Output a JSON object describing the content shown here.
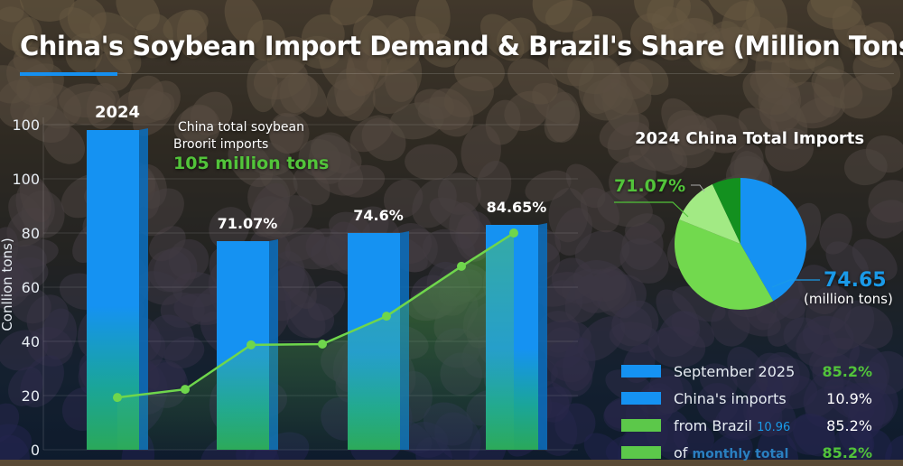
{
  "title": "China's Soybean Import Demand & Brazil's Share (Million Tons)",
  "colors": {
    "blue": "#1592f2",
    "green": "#6fd64c",
    "light_green": "#9be77a",
    "dark_green": "#138a1e",
    "accent_text_green": "#52c43a",
    "accent_text_blue": "#1a9ae8"
  },
  "callout": {
    "line1": "China total soybean",
    "line2": "Broorit imports",
    "value": "105 million tons"
  },
  "chart_data": [
    {
      "type": "bar",
      "ylabel": "Conllion tons)",
      "ytick_labels": [
        "0",
        "20",
        "40",
        "60",
        "80",
        "100",
        "100"
      ],
      "ylim": [
        0,
        120
      ],
      "grid": true,
      "bars": [
        {
          "label": "2024",
          "value": 118
        },
        {
          "label": "71.07%",
          "value": 77
        },
        {
          "label": "74.6%",
          "value": 80
        },
        {
          "label": "84.65%",
          "value": 83
        }
      ],
      "line": {
        "values": [
          19.3,
          22.3,
          38.7,
          39,
          49.3,
          67.7,
          80
        ]
      }
    },
    {
      "type": "pie",
      "title": "2024 China Total Imports",
      "slices": [
        {
          "name": "blue",
          "value": 41.7,
          "color": "#1592f2"
        },
        {
          "name": "green",
          "value": 39.3,
          "color": "#72d94e"
        },
        {
          "name": "light green",
          "value": 12,
          "color": "#a2ea84"
        },
        {
          "name": "dark green",
          "value": 7,
          "color": "#13901f"
        }
      ],
      "label_green": "71.07%",
      "label_blue": "74.65",
      "label_unit": "(million tons)"
    }
  ],
  "legend": [
    {
      "text": "September 2025",
      "value": "85.2%",
      "swatch": "#1592f2",
      "value_color": "#52c43a"
    },
    {
      "text": "China's imports",
      "value": "10.9%",
      "swatch": "#1592f2",
      "value_color": "#ffffff"
    },
    {
      "text": "from Brazil",
      "extra": "10.96",
      "value": "85.2%",
      "swatch": "#5cc84a",
      "value_color": "#ffffff"
    },
    {
      "text": "of",
      "extra": "monthly total",
      "value": "85.2%",
      "swatch": "#5cc84a",
      "value_color": "#52c43a"
    }
  ]
}
